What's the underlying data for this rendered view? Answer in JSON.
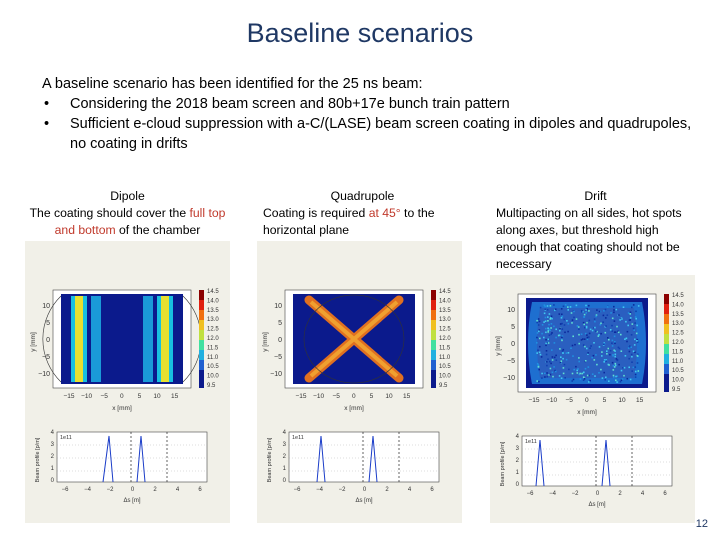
{
  "title": "Baseline scenarios",
  "intro": {
    "lead": "A baseline scenario has been identified for the 25 ns beam:",
    "bullets": [
      "Considering the 2018 beam screen and 80b+17e bunch train pattern",
      "Sufficient e-cloud suppression with a-C/(LASE) beam screen coating in dipoles and quadrupoles, no coating in drifts"
    ],
    "bullet_glyph": "•"
  },
  "panels": [
    {
      "heading": "Dipole",
      "text_before": "The coating should cover the ",
      "highlight": "full top and bottom",
      "text_after": " of the chamber"
    },
    {
      "heading": "Quadrupole",
      "text_before": "Coating is required ",
      "highlight": "at 45°",
      "text_after": " to the horizontal plane"
    },
    {
      "heading": "Drift",
      "text_before": "Multipacting on all sides, hot spots along axes, but threshold high enough that coating should not be necessary",
      "highlight": "",
      "text_after": ""
    }
  ],
  "map_axes": {
    "xlabel": "x [mm]",
    "ylabel": "y [mm]",
    "xticks": [
      "−15",
      "−10",
      "−5",
      "0",
      "5",
      "10",
      "15"
    ],
    "yticks": [
      "10",
      "5",
      "0",
      "−5",
      "−10"
    ],
    "colorbar_ticks": [
      "14.5",
      "14.0",
      "13.5",
      "13.0",
      "12.5",
      "12.0",
      "11.5",
      "11.0",
      "10.5",
      "10.0",
      "9.5"
    ]
  },
  "profile_axes": {
    "ylabel": "Beam profile [p/m]",
    "scale": "1e11",
    "yticks": [
      "4",
      "3",
      "2",
      "1",
      "0"
    ],
    "xticks": [
      "−6",
      "−4",
      "−2",
      "0",
      "2",
      "4",
      "6"
    ],
    "xlabel": "Δs [m]"
  },
  "colors": {
    "title": "#1f3864",
    "highlight": "#c0392b",
    "panel_bg": "#f1f0e8",
    "map_bg": "#0b1a8c"
  },
  "page_number": "12"
}
